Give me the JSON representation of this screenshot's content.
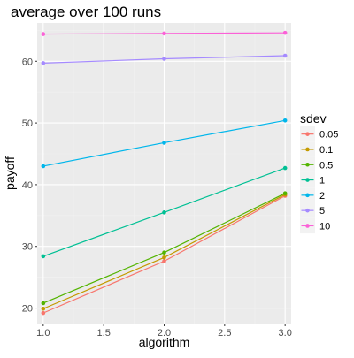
{
  "chart_data": {
    "type": "line",
    "title": "average over 100 runs",
    "xlabel": "algorithm",
    "ylabel": "payoff",
    "x": [
      1,
      2,
      3
    ],
    "xlim": [
      0.95,
      3.05
    ],
    "ylim": [
      17.5,
      66.2
    ],
    "x_ticks": [
      1.0,
      1.5,
      2.0,
      2.5,
      3.0
    ],
    "x_tick_labels": [
      "1.0",
      "1.5",
      "2.0",
      "2.5",
      "3.0"
    ],
    "y_ticks": [
      20,
      30,
      40,
      50,
      60
    ],
    "y_tick_labels": [
      "20",
      "30",
      "40",
      "50",
      "60"
    ],
    "grid": true,
    "legend": {
      "title": "sdev",
      "position": "right"
    },
    "series": [
      {
        "name": "0.05",
        "color": "#F8766D",
        "values": [
          19.2,
          27.6,
          38.2
        ]
      },
      {
        "name": "0.1",
        "color": "#C49A00",
        "values": [
          19.9,
          28.2,
          38.4
        ]
      },
      {
        "name": "0.5",
        "color": "#53B400",
        "values": [
          20.8,
          29.0,
          38.6
        ]
      },
      {
        "name": "1",
        "color": "#00C094",
        "values": [
          28.4,
          35.5,
          42.7
        ]
      },
      {
        "name": "2",
        "color": "#00B6EB",
        "values": [
          43.0,
          46.8,
          50.4
        ]
      },
      {
        "name": "5",
        "color": "#A58AFF",
        "values": [
          59.7,
          60.4,
          60.9
        ]
      },
      {
        "name": "10",
        "color": "#FB61D7",
        "values": [
          64.4,
          64.5,
          64.6
        ]
      }
    ]
  }
}
